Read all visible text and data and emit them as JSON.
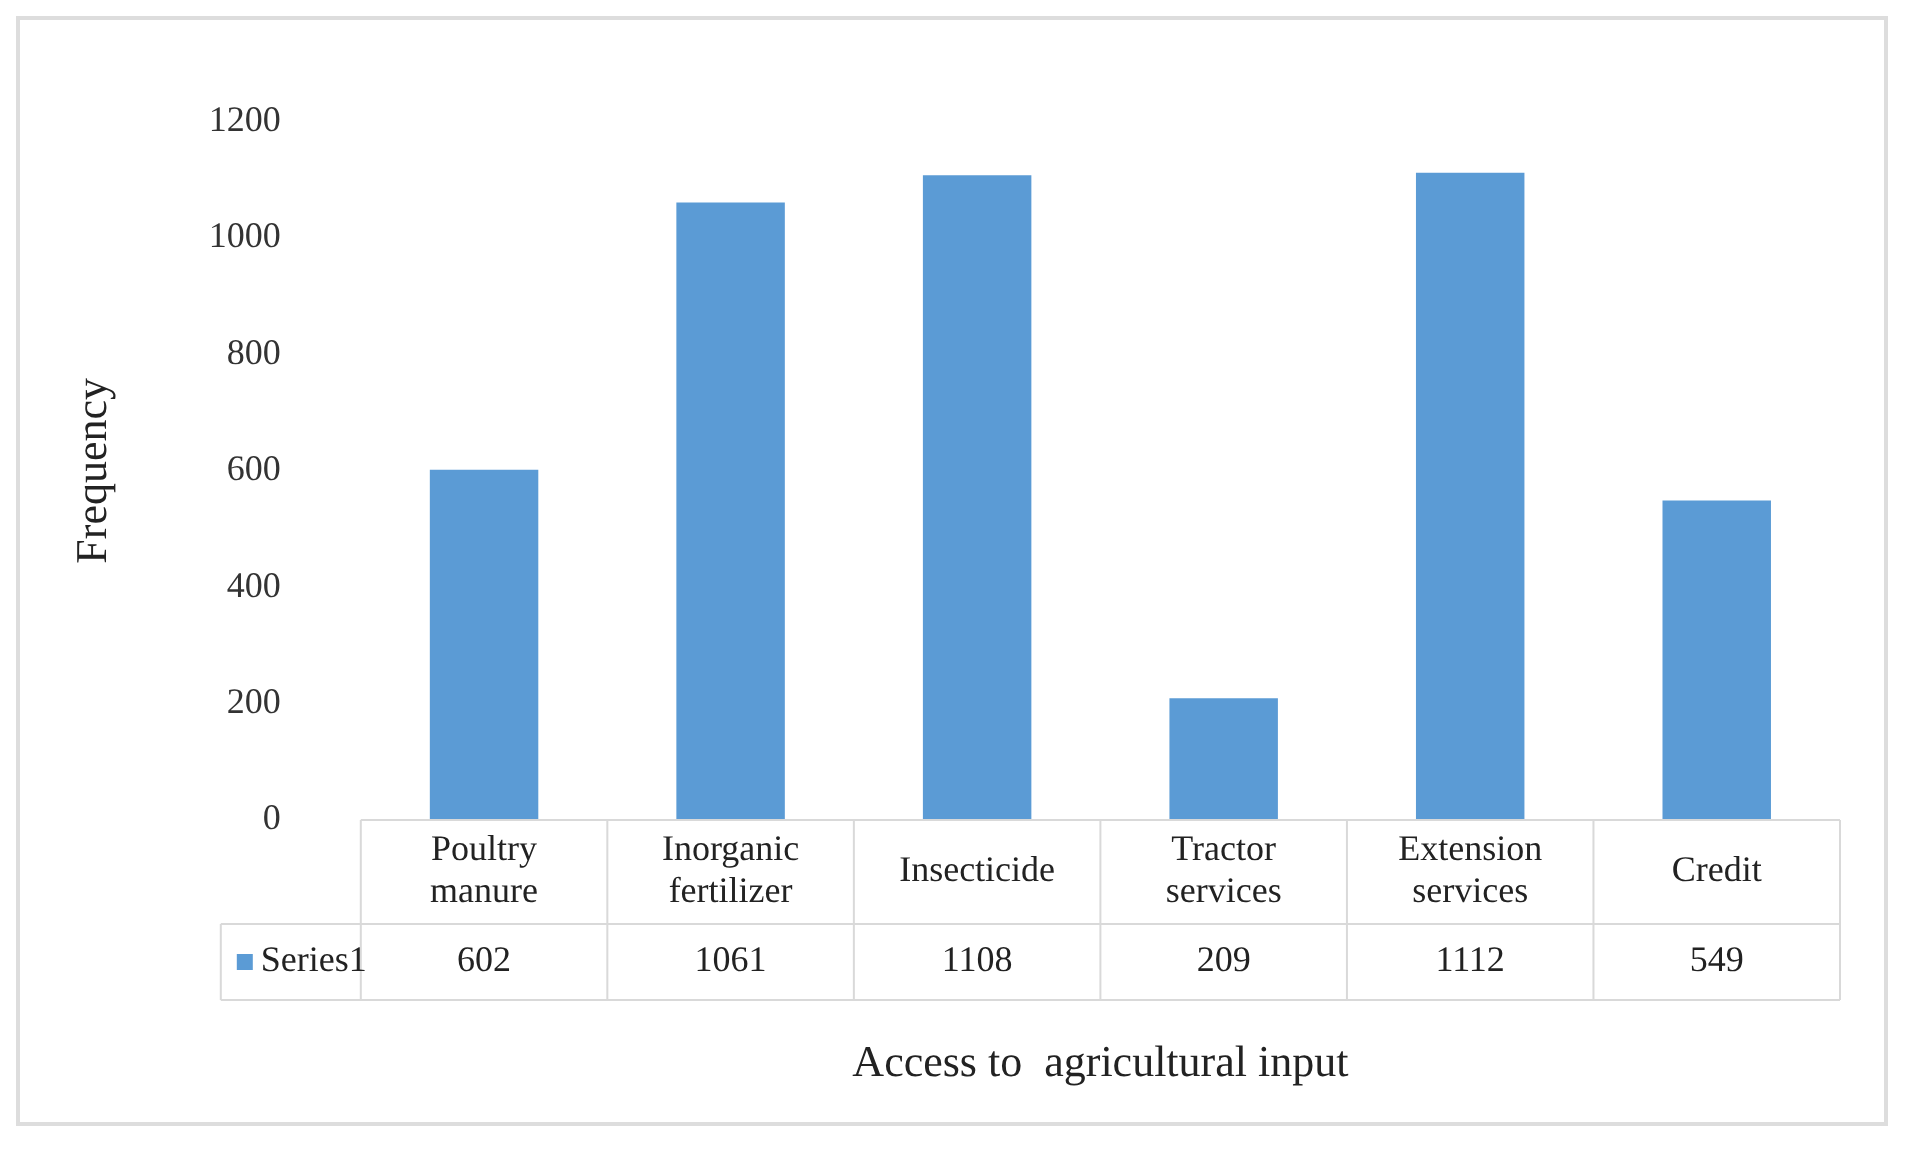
{
  "chart_data": {
    "type": "bar",
    "xlabel": "Access to  agricultural input",
    "ylabel": "Frequency",
    "categories": [
      "Poultry manure",
      "Inorganic fertilizer",
      "Insecticide",
      "Tractor services",
      "Extension services",
      "Credit"
    ],
    "series": [
      {
        "name": "Series1",
        "color": "#5b9bd5",
        "values": [
          602,
          1061,
          1108,
          209,
          1112,
          549
        ]
      }
    ],
    "ylim": [
      0,
      1200
    ],
    "yticks": [
      0,
      200,
      400,
      600,
      800,
      1000,
      1200
    ],
    "grid": false,
    "data_labels": true
  }
}
